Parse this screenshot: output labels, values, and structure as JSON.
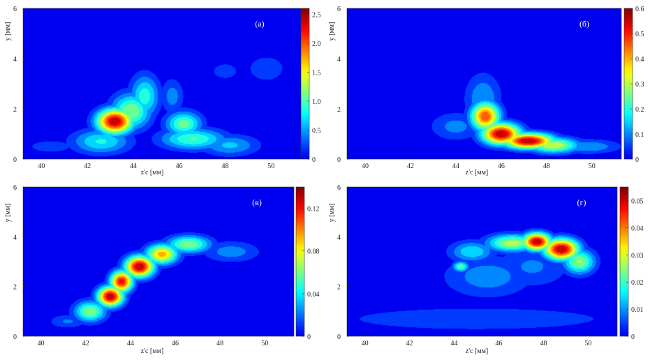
{
  "chart_data": [
    {
      "type": "heatmap",
      "panel_label": "(а)",
      "xlabel": "z'c [мм]",
      "ylabel": "y [мм]",
      "xlim": [
        39.2,
        51.3
      ],
      "ylim": [
        0,
        6
      ],
      "x_ticks": [
        40,
        42,
        44,
        46,
        48,
        50
      ],
      "y_ticks": [
        0,
        2,
        4,
        6
      ],
      "colorbar": {
        "min": 0,
        "max": 2.6,
        "ticks": [
          "0",
          "0.5",
          "1.0",
          "1.5",
          "2.0",
          "2.5"
        ],
        "tick_values": [
          0,
          0.5,
          1.0,
          1.5,
          2.0,
          2.5
        ]
      },
      "blobs": [
        {
          "x": 43.2,
          "y": 1.5,
          "sx": 0.55,
          "sy": 0.35,
          "v": 2.6
        },
        {
          "x": 43.9,
          "y": 1.9,
          "sx": 0.6,
          "sy": 0.5,
          "v": 1.3
        },
        {
          "x": 42.6,
          "y": 0.7,
          "sx": 0.9,
          "sy": 0.35,
          "v": 0.9
        },
        {
          "x": 44.5,
          "y": 2.5,
          "sx": 0.45,
          "sy": 0.6,
          "v": 1.0
        },
        {
          "x": 46.2,
          "y": 1.4,
          "sx": 0.55,
          "sy": 0.35,
          "v": 1.2
        },
        {
          "x": 46.6,
          "y": 0.8,
          "sx": 1.0,
          "sy": 0.3,
          "v": 1.1
        },
        {
          "x": 45.7,
          "y": 2.5,
          "sx": 0.35,
          "sy": 0.5,
          "v": 0.55
        },
        {
          "x": 48.2,
          "y": 0.55,
          "sx": 0.9,
          "sy": 0.3,
          "v": 0.7
        },
        {
          "x": 49.8,
          "y": 3.6,
          "sx": 0.7,
          "sy": 0.45,
          "v": 0.35
        },
        {
          "x": 48.0,
          "y": 3.5,
          "sx": 0.9,
          "sy": 0.5,
          "v": 0.25
        },
        {
          "x": 40.4,
          "y": 0.5,
          "sx": 1.0,
          "sy": 0.25,
          "v": 0.3
        }
      ]
    },
    {
      "type": "heatmap",
      "panel_label": "(б)",
      "xlabel": "z'c [мм]",
      "ylabel": "y [мм]",
      "xlim": [
        39.2,
        51.3
      ],
      "ylim": [
        0,
        6
      ],
      "x_ticks": [
        40,
        42,
        44,
        46,
        48,
        50
      ],
      "y_ticks": [
        0,
        2,
        4,
        6
      ],
      "colorbar": {
        "min": 0,
        "max": 0.6,
        "ticks": [
          "0",
          "0.1",
          "0.2",
          "0.3",
          "0.4",
          "0.5",
          "0.6"
        ],
        "tick_values": [
          0,
          0.1,
          0.2,
          0.3,
          0.4,
          0.5,
          0.6
        ]
      },
      "blobs": [
        {
          "x": 45.3,
          "y": 1.7,
          "sx": 0.45,
          "sy": 0.4,
          "v": 0.5
        },
        {
          "x": 46.0,
          "y": 1.0,
          "sx": 0.6,
          "sy": 0.3,
          "v": 0.6
        },
        {
          "x": 47.2,
          "y": 0.72,
          "sx": 0.8,
          "sy": 0.22,
          "v": 0.6
        },
        {
          "x": 48.3,
          "y": 0.55,
          "sx": 0.8,
          "sy": 0.22,
          "v": 0.35
        },
        {
          "x": 45.2,
          "y": 2.4,
          "sx": 0.55,
          "sy": 0.7,
          "v": 0.15
        },
        {
          "x": 49.8,
          "y": 0.5,
          "sx": 1.0,
          "sy": 0.2,
          "v": 0.15
        },
        {
          "x": 44.0,
          "y": 1.3,
          "sx": 0.8,
          "sy": 0.4,
          "v": 0.12
        }
      ]
    },
    {
      "type": "heatmap",
      "panel_label": "(в)",
      "xlabel": "z'c [мм]",
      "ylabel": "y [мм]",
      "xlim": [
        39.2,
        51.3
      ],
      "ylim": [
        0,
        6
      ],
      "x_ticks": [
        40,
        42,
        44,
        46,
        48,
        50
      ],
      "y_ticks": [
        0,
        2,
        4,
        6
      ],
      "colorbar": {
        "min": 0,
        "max": 0.14,
        "ticks": [
          "0",
          "0.04",
          "0.08",
          "0.12"
        ],
        "tick_values": [
          0,
          0.04,
          0.08,
          0.12
        ]
      },
      "blobs": [
        {
          "x": 43.1,
          "y": 1.6,
          "sx": 0.4,
          "sy": 0.28,
          "v": 0.14
        },
        {
          "x": 43.6,
          "y": 2.2,
          "sx": 0.35,
          "sy": 0.3,
          "v": 0.13
        },
        {
          "x": 44.4,
          "y": 2.8,
          "sx": 0.45,
          "sy": 0.3,
          "v": 0.14
        },
        {
          "x": 45.4,
          "y": 3.3,
          "sx": 0.5,
          "sy": 0.28,
          "v": 0.1
        },
        {
          "x": 46.6,
          "y": 3.7,
          "sx": 0.7,
          "sy": 0.25,
          "v": 0.07
        },
        {
          "x": 42.2,
          "y": 1.0,
          "sx": 0.5,
          "sy": 0.3,
          "v": 0.07
        },
        {
          "x": 48.5,
          "y": 3.4,
          "sx": 0.9,
          "sy": 0.3,
          "v": 0.03
        },
        {
          "x": 41.2,
          "y": 0.6,
          "sx": 0.6,
          "sy": 0.2,
          "v": 0.025
        }
      ]
    },
    {
      "type": "heatmap",
      "panel_label": "(г)",
      "xlabel": "z'c [мм]",
      "ylabel": "y [мм]",
      "xlim": [
        39.2,
        51.3
      ],
      "ylim": [
        0,
        6
      ],
      "x_ticks": [
        40,
        42,
        44,
        46,
        48,
        50
      ],
      "y_ticks": [
        0,
        2,
        4,
        6
      ],
      "colorbar": {
        "min": 0,
        "max": 0.055,
        "ticks": [
          "0",
          "0.01",
          "0.02",
          "0.03",
          "0.04",
          "0.05"
        ],
        "tick_values": [
          0,
          0.01,
          0.02,
          0.03,
          0.04,
          0.05
        ]
      },
      "blobs": [
        {
          "x": 47.7,
          "y": 3.8,
          "sx": 0.45,
          "sy": 0.25,
          "v": 0.055
        },
        {
          "x": 48.8,
          "y": 3.5,
          "sx": 0.55,
          "sy": 0.3,
          "v": 0.055
        },
        {
          "x": 46.6,
          "y": 3.75,
          "sx": 0.8,
          "sy": 0.25,
          "v": 0.03
        },
        {
          "x": 49.6,
          "y": 3.0,
          "sx": 0.5,
          "sy": 0.35,
          "v": 0.028
        },
        {
          "x": 44.8,
          "y": 3.4,
          "sx": 0.7,
          "sy": 0.3,
          "v": 0.018
        },
        {
          "x": 44.3,
          "y": 2.8,
          "sx": 0.25,
          "sy": 0.15,
          "v": 0.025
        },
        {
          "x": 45.5,
          "y": 2.4,
          "sx": 1.4,
          "sy": 0.6,
          "v": 0.012
        },
        {
          "x": 47.5,
          "y": 2.8,
          "sx": 1.2,
          "sy": 0.6,
          "v": 0.01
        },
        {
          "x": 45.0,
          "y": 0.7,
          "sx": 4.5,
          "sy": 0.35,
          "v": 0.009
        }
      ]
    }
  ]
}
